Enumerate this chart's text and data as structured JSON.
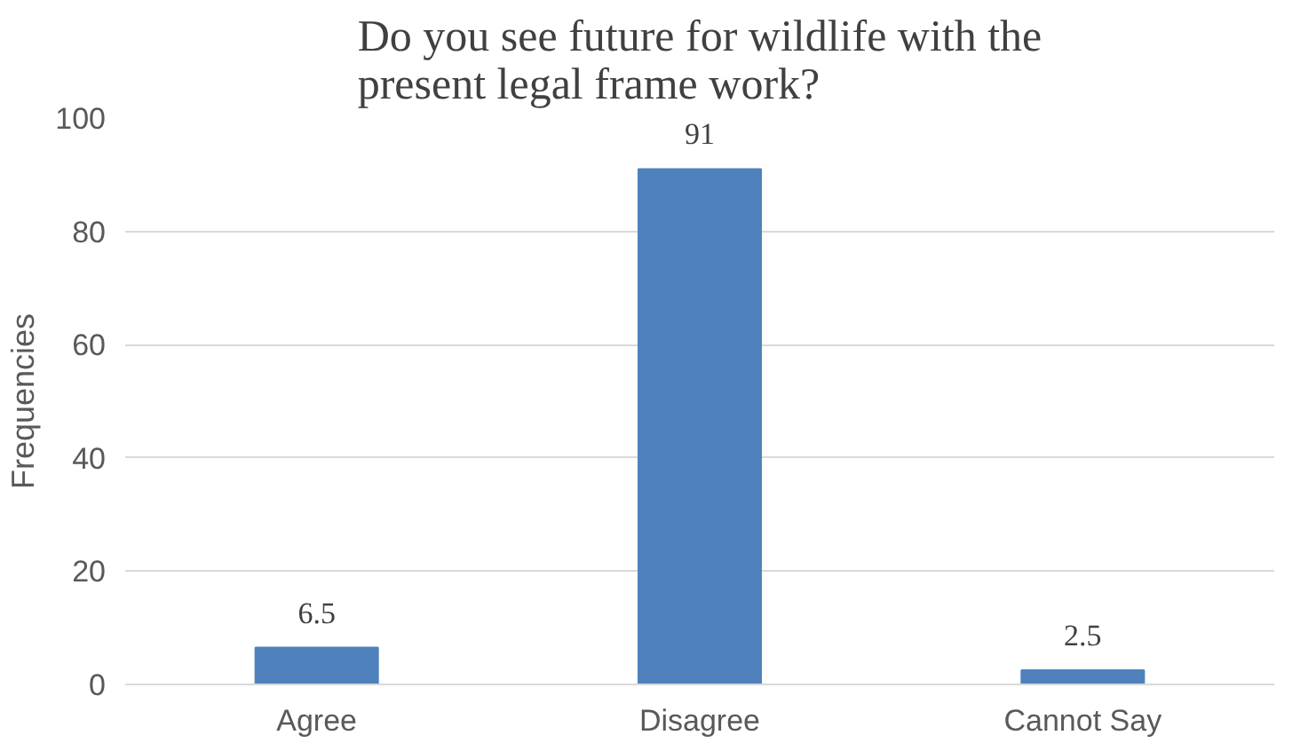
{
  "chart_data": {
    "type": "bar",
    "title": "Do you see future for wildlife with the\npresent legal frame work?",
    "ylabel": "Frequencies",
    "categories": [
      "Agree",
      "Disagree",
      "Cannot Say"
    ],
    "values": [
      6.5,
      91,
      2.5
    ],
    "color": "#4f81bd",
    "ylim": [
      0,
      100
    ],
    "yticks": [
      0,
      20,
      40,
      60,
      80,
      100
    ],
    "grid": "y",
    "data_labels": true
  }
}
